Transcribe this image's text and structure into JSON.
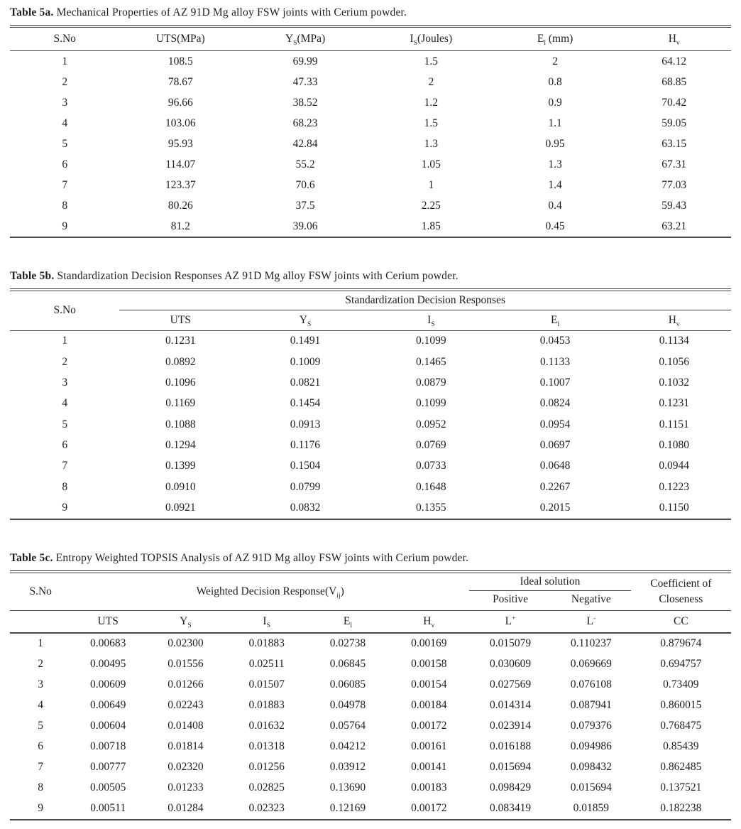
{
  "page": {
    "background_color": "#ffffff",
    "text_color": "#1f1f1f",
    "rule_color": "#3e3e3e"
  },
  "tables": [
    {
      "caption_label": "Table 5a.",
      "caption_text": " Mechanical Properties of AZ 91D Mg alloy FSW joints with Cerium powder.",
      "columns": [
        {
          "base": "S.No"
        },
        {
          "base": "UTS(MPa)"
        },
        {
          "base": "Y",
          "sub": "S",
          "rest": "(MPa)"
        },
        {
          "base": "I",
          "sub": "S",
          "rest": "(Joules)"
        },
        {
          "base": "E",
          "sub": "l",
          "rest": " (mm)"
        },
        {
          "base": "H",
          "sub": "v"
        }
      ],
      "rows": [
        [
          "1",
          "108.5",
          "69.99",
          "1.5",
          "2",
          "64.12"
        ],
        [
          "2",
          "78.67",
          "47.33",
          "2",
          "0.8",
          "68.85"
        ],
        [
          "3",
          "96.66",
          "38.52",
          "1.2",
          "0.9",
          "70.42"
        ],
        [
          "4",
          "103.06",
          "68.23",
          "1.5",
          "1.1",
          "59.05"
        ],
        [
          "5",
          "95.93",
          "42.84",
          "1.3",
          "0.95",
          "63.15"
        ],
        [
          "6",
          "114.07",
          "55.2",
          "1.05",
          "1.3",
          "67.31"
        ],
        [
          "7",
          "123.37",
          "70.6",
          "1",
          "1.4",
          "77.03"
        ],
        [
          "8",
          "80.26",
          "37.5",
          "2.25",
          "0.4",
          "59.43"
        ],
        [
          "9",
          "81.2",
          "39.06",
          "1.85",
          "0.45",
          "63.21"
        ]
      ]
    },
    {
      "caption_label": "Table 5b.",
      "caption_text": " Standardization Decision Responses AZ 91D Mg alloy FSW joints with Cerium powder.",
      "sno_header": "S.No",
      "group_header": "Standardization Decision Responses",
      "columns": [
        {
          "base": "UTS"
        },
        {
          "base": "Y",
          "sub": "S"
        },
        {
          "base": "I",
          "sub": "S"
        },
        {
          "base": "E",
          "sub": "l"
        },
        {
          "base": "H",
          "sub": "v"
        }
      ],
      "rows": [
        [
          "1",
          "0.1231",
          "0.1491",
          "0.1099",
          "0.0453",
          "0.1134"
        ],
        [
          "2",
          "0.0892",
          "0.1009",
          "0.1465",
          "0.1133",
          "0.1056"
        ],
        [
          "3",
          "0.1096",
          "0.0821",
          "0.0879",
          "0.1007",
          "0.1032"
        ],
        [
          "4",
          "0.1169",
          "0.1454",
          "0.1099",
          "0.0824",
          "0.1231"
        ],
        [
          "5",
          "0.1088",
          "0.0913",
          "0.0952",
          "0.0954",
          "0.1151"
        ],
        [
          "6",
          "0.1294",
          "0.1176",
          "0.0769",
          "0.0697",
          "0.1080"
        ],
        [
          "7",
          "0.1399",
          "0.1504",
          "0.0733",
          "0.0648",
          "0.0944"
        ],
        [
          "8",
          "0.0910",
          "0.0799",
          "0.1648",
          "0.2267",
          "0.1223"
        ],
        [
          "9",
          "0.0921",
          "0.0832",
          "0.1355",
          "0.2015",
          "0.1150"
        ]
      ]
    },
    {
      "caption_label": "Table 5c.",
      "caption_text": " Entropy Weighted TOPSIS Analysis of AZ 91D Mg alloy FSW joints with Cerium powder.",
      "sno_header": "S.No",
      "group_header": {
        "base": "Weighted Decision Response(V",
        "sub": "ij",
        "rest": ")"
      },
      "ideal_header": "Ideal solution",
      "ideal_positive": "Positive",
      "ideal_negative": "Negative",
      "closeness_line1": "Coefficient of",
      "closeness_line2": "Closeness",
      "columns": [
        {
          "base": "UTS"
        },
        {
          "base": "Y",
          "sub": "S"
        },
        {
          "base": "I",
          "sub": "S"
        },
        {
          "base": "E",
          "sub": "l"
        },
        {
          "base": "H",
          "sub": "v"
        },
        {
          "base": "L",
          "sup": "+"
        },
        {
          "base": "L",
          "sup": "-"
        },
        {
          "base": "CC"
        }
      ],
      "rows": [
        [
          "1",
          "0.00683",
          "0.02300",
          "0.01883",
          "0.02738",
          "0.00169",
          "0.015079",
          "0.110237",
          "0.879674"
        ],
        [
          "2",
          "0.00495",
          "0.01556",
          "0.02511",
          "0.06845",
          "0.00158",
          "0.030609",
          "0.069669",
          "0.694757"
        ],
        [
          "3",
          "0.00609",
          "0.01266",
          "0.01507",
          "0.06085",
          "0.00154",
          "0.027569",
          "0.076108",
          "0.73409"
        ],
        [
          "4",
          "0.00649",
          "0.02243",
          "0.01883",
          "0.04978",
          "0.00184",
          "0.014314",
          "0.087941",
          "0.860015"
        ],
        [
          "5",
          "0.00604",
          "0.01408",
          "0.01632",
          "0.05764",
          "0.00172",
          "0.023914",
          "0.079376",
          "0.768475"
        ],
        [
          "6",
          "0.00718",
          "0.01814",
          "0.01318",
          "0.04212",
          "0.00161",
          "0.016188",
          "0.094986",
          "0.85439"
        ],
        [
          "7",
          "0.00777",
          "0.02320",
          "0.01256",
          "0.03912",
          "0.00141",
          "0.015694",
          "0.098432",
          "0.862485"
        ],
        [
          "8",
          "0.00505",
          "0.01233",
          "0.02825",
          "0.13690",
          "0.00183",
          "0.098429",
          "0.015694",
          "0.137521"
        ],
        [
          "9",
          "0.00511",
          "0.01284",
          "0.02323",
          "0.12169",
          "0.00172",
          "0.083419",
          "0.01859",
          "0.182238"
        ]
      ]
    }
  ]
}
